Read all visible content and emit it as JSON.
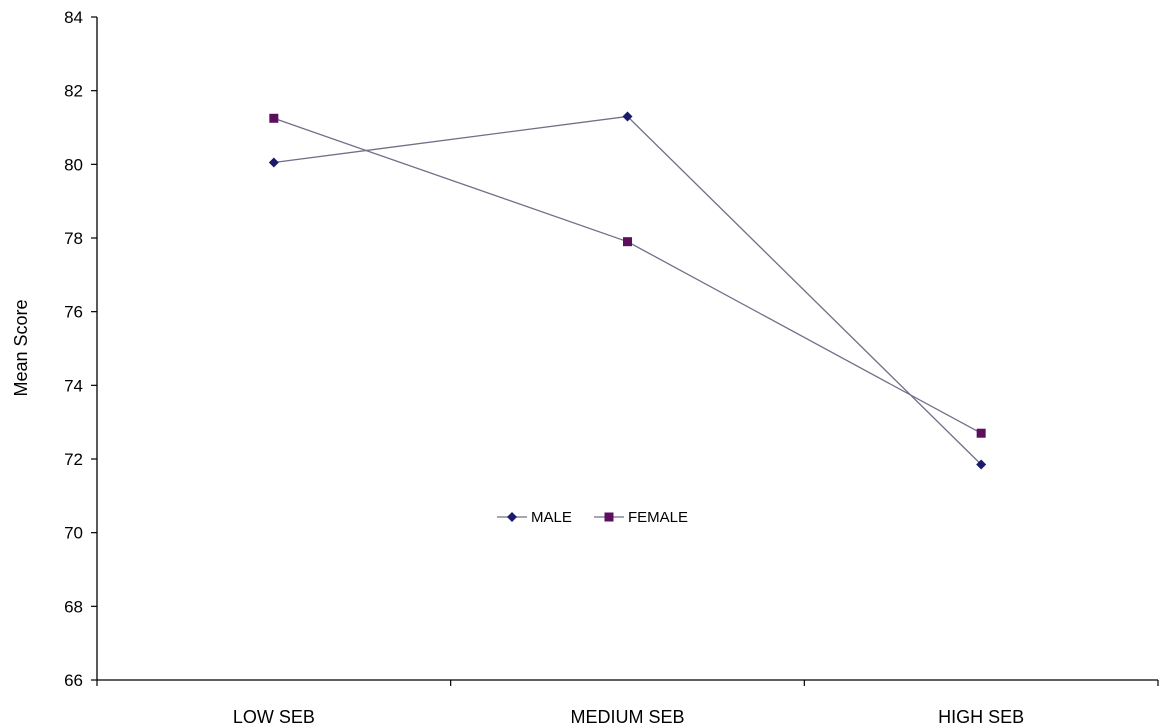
{
  "chart_data": {
    "type": "line",
    "title": "",
    "xlabel": "",
    "ylabel": "Mean Score",
    "categories": [
      "LOW SEB",
      "MEDIUM SEB",
      "HIGH SEB"
    ],
    "ylim": [
      66,
      84
    ],
    "yticks": [
      66,
      68,
      70,
      72,
      74,
      76,
      78,
      80,
      82,
      84
    ],
    "grid": false,
    "legend_position": "center",
    "series": [
      {
        "name": "MALE",
        "values": [
          80.05,
          81.3,
          71.85
        ],
        "color": "#6F6F87",
        "marker": "diamond",
        "marker_color": "#1A1A6E"
      },
      {
        "name": "FEMALE",
        "values": [
          81.25,
          77.9,
          72.7
        ],
        "color": "#6F6F87",
        "marker": "square",
        "marker_color": "#5C0F5C"
      }
    ]
  }
}
